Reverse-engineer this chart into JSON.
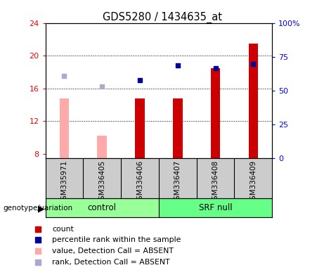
{
  "title": "GDS5280 / 1434635_at",
  "samples": [
    "GSM335971",
    "GSM336405",
    "GSM336406",
    "GSM336407",
    "GSM336408",
    "GSM336409"
  ],
  "count_values": [
    null,
    null,
    14.8,
    14.8,
    18.5,
    21.5
  ],
  "count_absent": [
    14.8,
    10.2,
    null,
    null,
    null,
    null
  ],
  "percentile_values": [
    null,
    null,
    17.0,
    18.8,
    18.5,
    19.0
  ],
  "percentile_absent": [
    17.5,
    16.2,
    null,
    null,
    null,
    null
  ],
  "ylim_left": [
    7.5,
    24
  ],
  "ylim_right": [
    0,
    100
  ],
  "yticks_left": [
    8,
    12,
    16,
    20,
    24
  ],
  "yticks_right": [
    0,
    25,
    50,
    75,
    100
  ],
  "ytick_labels_right": [
    "0",
    "25",
    "50",
    "75",
    "100%"
  ],
  "color_count": "#cc0000",
  "color_percentile": "#000099",
  "color_absent_count": "#ffaaaa",
  "color_absent_rank": "#aaaacc",
  "bar_bottom": 7.5,
  "bar_width": 0.25,
  "legend_labels": [
    "count",
    "percentile rank within the sample",
    "value, Detection Call = ABSENT",
    "rank, Detection Call = ABSENT"
  ]
}
